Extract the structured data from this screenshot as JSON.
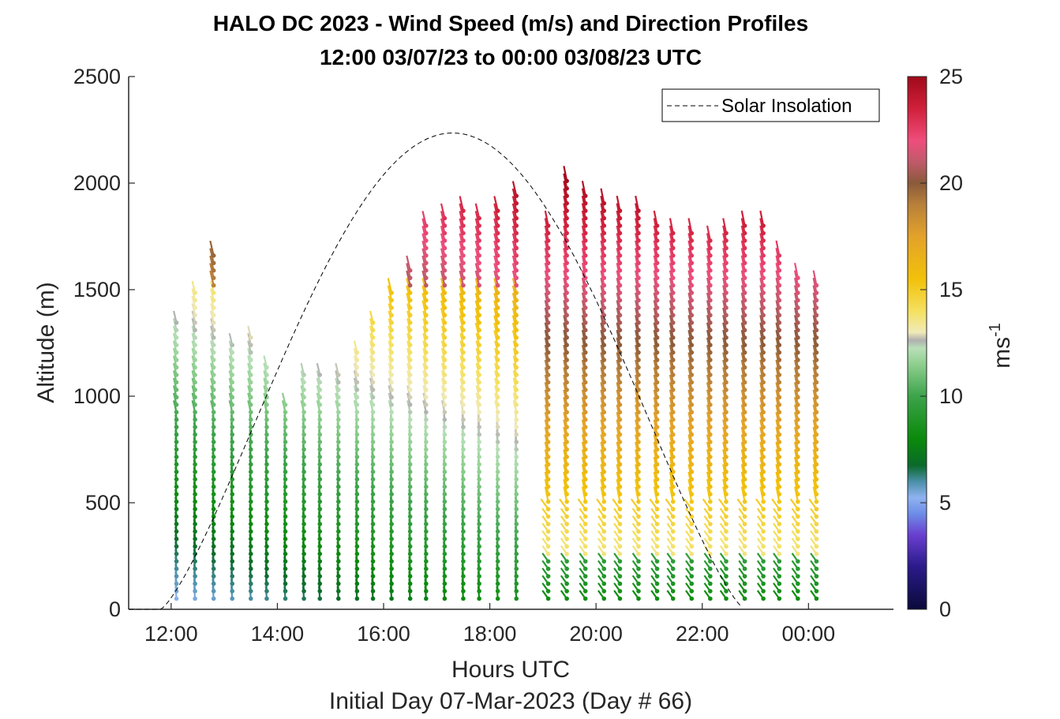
{
  "chart_data": {
    "type": "wind-barb-profile",
    "title": "HALO DC 2023 - Wind Speed (m/s) and Direction Profiles",
    "subtitle": "12:00 03/07/23 to 00:00 03/08/23  UTC",
    "xlabel": "Hours UTC",
    "xlabel2": "Initial Day 07-Mar-2023 (Day # 66)",
    "ylabel": "Altitude (m)",
    "xlim_hours": [
      11.2,
      25.6
    ],
    "ylim": [
      0,
      2500
    ],
    "x_ticks": [
      {
        "hour": 12,
        "label": "12:00"
      },
      {
        "hour": 14,
        "label": "14:00"
      },
      {
        "hour": 16,
        "label": "16:00"
      },
      {
        "hour": 18,
        "label": "18:00"
      },
      {
        "hour": 20,
        "label": "20:00"
      },
      {
        "hour": 22,
        "label": "22:00"
      },
      {
        "hour": 24,
        "label": "00:00"
      }
    ],
    "y_ticks": [
      0,
      500,
      1000,
      1500,
      2000,
      2500
    ],
    "colorbar": {
      "label": "ms",
      "label_superscript": "-1",
      "range": [
        0,
        25
      ],
      "ticks": [
        0,
        5,
        10,
        15,
        20,
        25
      ]
    },
    "legend": {
      "entries": [
        "Solar Insolation"
      ],
      "placement": "top-right"
    },
    "solar_insolation": {
      "style": "dashed black",
      "rise_hour": 11.8,
      "peak_hour": 17.35,
      "set_hour": 22.8,
      "peak_altitude": 2235
    },
    "profiles_hours": [
      12.1,
      12.45,
      12.8,
      13.15,
      13.5,
      13.8,
      14.15,
      14.5,
      14.8,
      15.15,
      15.5,
      15.8,
      16.15,
      16.5,
      16.8,
      17.15,
      17.5,
      17.8,
      18.15,
      18.5,
      19.1,
      19.45,
      19.8,
      20.15,
      20.45,
      20.8,
      21.15,
      21.45,
      21.8,
      22.15,
      22.45,
      22.8,
      23.15,
      23.45,
      23.8,
      24.15
    ],
    "profile_tops_m": [
      1360,
      1490,
      1660,
      1240,
      1290,
      1160,
      990,
      1100,
      1100,
      1100,
      1210,
      1360,
      1490,
      1620,
      1830,
      1840,
      1880,
      1860,
      1870,
      1960,
      1820,
      2030,
      1950,
      1930,
      1880,
      1880,
      1820,
      1780,
      1780,
      1760,
      1780,
      1800,
      1830,
      1660,
      1570,
      1540
    ]
  }
}
